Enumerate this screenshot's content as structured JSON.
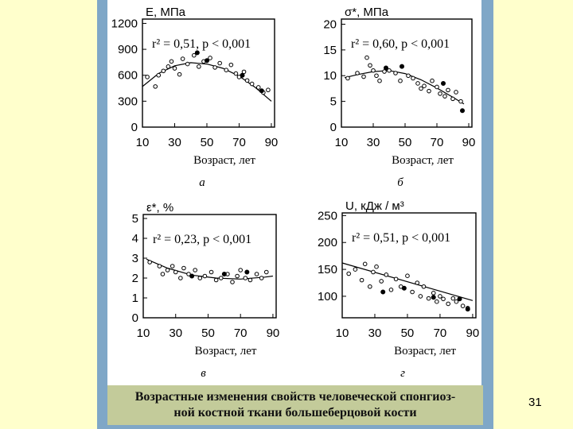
{
  "caption": {
    "line1": "Возрастные изменения свойств человеческой спонгиоз-",
    "line2": "ной костной ткани большеберцовой кости"
  },
  "page_number": "31",
  "colors": {
    "slide_background": "#ffffcc",
    "panel": "#7fa7c7",
    "caption_box": "#c3cb9a"
  },
  "chart_data": [
    {
      "type": "scatter",
      "panel_letter": "а",
      "title": "E, МПа",
      "stat_text": "r² = 0,51, p < 0,001",
      "stat": {
        "r2": 0.51,
        "p": "< 0,001"
      },
      "xlabel": "Возраст, лет",
      "xticks": [
        10,
        30,
        50,
        70,
        90
      ],
      "yticks": [
        0,
        300,
        600,
        900,
        1200
      ],
      "xlim": [
        10,
        92
      ],
      "ylim": [
        0,
        1250
      ],
      "trend_type": "quadratic",
      "trend": [
        [
          10,
          470
        ],
        [
          20,
          620
        ],
        [
          30,
          710
        ],
        [
          40,
          745
        ],
        [
          50,
          730
        ],
        [
          60,
          680
        ],
        [
          70,
          590
        ],
        [
          80,
          460
        ],
        [
          90,
          300
        ]
      ],
      "open_points": [
        [
          13,
          580
        ],
        [
          18,
          470
        ],
        [
          20,
          600
        ],
        [
          23,
          650
        ],
        [
          26,
          700
        ],
        [
          28,
          760
        ],
        [
          30,
          680
        ],
        [
          33,
          610
        ],
        [
          35,
          790
        ],
        [
          38,
          730
        ],
        [
          42,
          830
        ],
        [
          45,
          700
        ],
        [
          48,
          760
        ],
        [
          52,
          800
        ],
        [
          55,
          690
        ],
        [
          58,
          740
        ],
        [
          62,
          660
        ],
        [
          65,
          720
        ],
        [
          68,
          620
        ],
        [
          70,
          580
        ],
        [
          73,
          640
        ],
        [
          75,
          540
        ],
        [
          78,
          500
        ],
        [
          82,
          460
        ],
        [
          85,
          400
        ],
        [
          88,
          430
        ]
      ],
      "filled_points": [
        [
          44,
          860
        ],
        [
          50,
          770
        ],
        [
          72,
          600
        ],
        [
          84,
          420
        ]
      ]
    },
    {
      "type": "scatter",
      "panel_letter": "б",
      "title": "σ*, МПа",
      "stat_text": "r² = 0,60, p < 0,001",
      "stat": {
        "r2": 0.6,
        "p": "< 0,001"
      },
      "xlabel": "Возраст, лет",
      "xticks": [
        10,
        30,
        50,
        70,
        90
      ],
      "yticks": [
        0,
        5,
        10,
        15,
        20
      ],
      "xlim": [
        10,
        92
      ],
      "ylim": [
        0,
        21
      ],
      "trend_type": "quadratic",
      "trend": [
        [
          12,
          9.6
        ],
        [
          20,
          10.2
        ],
        [
          30,
          10.8
        ],
        [
          40,
          11.0
        ],
        [
          50,
          10.4
        ],
        [
          60,
          9.2
        ],
        [
          70,
          7.6
        ],
        [
          80,
          5.8
        ],
        [
          87,
          4.5
        ]
      ],
      "open_points": [
        [
          14,
          9.5
        ],
        [
          20,
          10.5
        ],
        [
          24,
          9.8
        ],
        [
          26,
          13.5
        ],
        [
          28,
          12.0
        ],
        [
          30,
          11.0
        ],
        [
          32,
          10.0
        ],
        [
          34,
          9.0
        ],
        [
          37,
          10.8
        ],
        [
          40,
          11.0
        ],
        [
          44,
          10.5
        ],
        [
          47,
          9.0
        ],
        [
          52,
          10.0
        ],
        [
          55,
          9.5
        ],
        [
          58,
          8.5
        ],
        [
          60,
          7.5
        ],
        [
          62,
          8.0
        ],
        [
          65,
          7.0
        ],
        [
          67,
          9.0
        ],
        [
          70,
          7.8
        ],
        [
          72,
          6.5
        ],
        [
          75,
          6.0
        ],
        [
          77,
          7.2
        ],
        [
          80,
          5.5
        ],
        [
          82,
          6.8
        ],
        [
          85,
          5.0
        ]
      ],
      "filled_points": [
        [
          38,
          11.5
        ],
        [
          48,
          11.8
        ],
        [
          74,
          8.5
        ],
        [
          86,
          3.2
        ]
      ]
    },
    {
      "type": "scatter",
      "panel_letter": "в",
      "title": "ε*, %",
      "stat_text": "r² = 0,23, p < 0,001",
      "stat": {
        "r2": 0.23,
        "p": "< 0,001"
      },
      "xlabel": "Возраст, лет",
      "xticks": [
        10,
        30,
        50,
        70,
        90
      ],
      "yticks": [
        0,
        1,
        2,
        3,
        4,
        5
      ],
      "xlim": [
        10,
        92
      ],
      "ylim": [
        0,
        5.2
      ],
      "trend_type": "quadratic",
      "trend": [
        [
          12,
          2.95
        ],
        [
          25,
          2.5
        ],
        [
          40,
          2.15
        ],
        [
          55,
          2.0
        ],
        [
          70,
          1.95
        ],
        [
          85,
          2.05
        ],
        [
          90,
          2.1
        ]
      ],
      "open_points": [
        [
          14,
          2.8
        ],
        [
          20,
          2.6
        ],
        [
          22,
          2.2
        ],
        [
          25,
          2.4
        ],
        [
          28,
          2.6
        ],
        [
          30,
          2.3
        ],
        [
          33,
          2.0
        ],
        [
          35,
          2.5
        ],
        [
          38,
          2.2
        ],
        [
          42,
          2.4
        ],
        [
          45,
          2.0
        ],
        [
          48,
          2.1
        ],
        [
          52,
          2.3
        ],
        [
          55,
          1.9
        ],
        [
          58,
          2.0
        ],
        [
          62,
          2.2
        ],
        [
          65,
          1.8
        ],
        [
          68,
          2.1
        ],
        [
          70,
          2.4
        ],
        [
          73,
          2.0
        ],
        [
          76,
          1.9
        ],
        [
          80,
          2.2
        ],
        [
          83,
          2.0
        ],
        [
          86,
          2.3
        ]
      ],
      "filled_points": [
        [
          40,
          2.1
        ],
        [
          60,
          2.2
        ],
        [
          74,
          2.3
        ]
      ]
    },
    {
      "type": "scatter",
      "panel_letter": "г",
      "title": "U, кДж / м³",
      "stat_text": "r² = 0,51, p < 0,001",
      "stat": {
        "r2": 0.51,
        "p": "< 0,001"
      },
      "xlabel": "Возраст, лет",
      "xticks": [
        10,
        30,
        50,
        70,
        90
      ],
      "yticks": [
        100,
        150,
        200,
        250
      ],
      "xlim": [
        10,
        92
      ],
      "ylim": [
        60,
        255
      ],
      "trend_type": "linear",
      "trend": [
        [
          10,
          162
        ],
        [
          90,
          92
        ]
      ],
      "open_points": [
        [
          14,
          142
        ],
        [
          18,
          150
        ],
        [
          22,
          130
        ],
        [
          24,
          160
        ],
        [
          27,
          118
        ],
        [
          29,
          145
        ],
        [
          31,
          155
        ],
        [
          34,
          128
        ],
        [
          37,
          140
        ],
        [
          40,
          112
        ],
        [
          43,
          132
        ],
        [
          46,
          118
        ],
        [
          50,
          138
        ],
        [
          53,
          108
        ],
        [
          56,
          125
        ],
        [
          58,
          100
        ],
        [
          60,
          118
        ],
        [
          63,
          96
        ],
        [
          66,
          106
        ],
        [
          68,
          90
        ],
        [
          70,
          100
        ],
        [
          72,
          95
        ],
        [
          75,
          86
        ],
        [
          78,
          96
        ],
        [
          80,
          90
        ],
        [
          84,
          82
        ],
        [
          87,
          78
        ]
      ],
      "filled_points": [
        [
          35,
          108
        ],
        [
          48,
          115
        ],
        [
          66,
          98
        ],
        [
          82,
          95
        ],
        [
          87,
          76
        ]
      ]
    }
  ]
}
